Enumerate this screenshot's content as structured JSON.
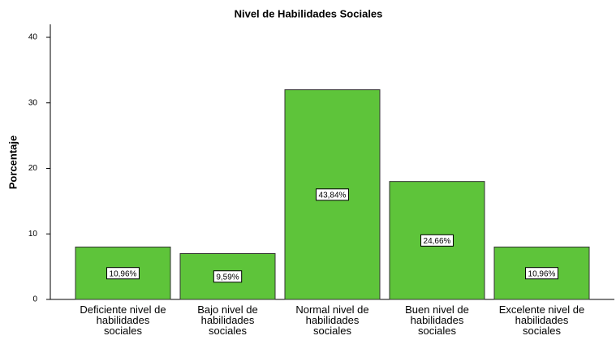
{
  "chart_data": {
    "type": "bar",
    "title": "Nivel de Habilidades Sociales",
    "y_label": "Porcentaje",
    "categories": [
      "Deficiente nivel de habilidades sociales",
      "Bajo nivel de habilidades sociales",
      "Normal nivel de habilidades sociales",
      "Buen nivel de habilidades sociales",
      "Excelente nivel de habilidades sociales"
    ],
    "values": [
      8,
      7,
      32,
      18,
      8
    ],
    "bar_labels": [
      "10,96%",
      "9,59%",
      "43,84%",
      "24,66%",
      "10,96%"
    ],
    "color": "#5ec43a",
    "ylim": [
      0,
      40
    ],
    "yticks": [
      0,
      10,
      20,
      30,
      40
    ],
    "grid": false
  }
}
